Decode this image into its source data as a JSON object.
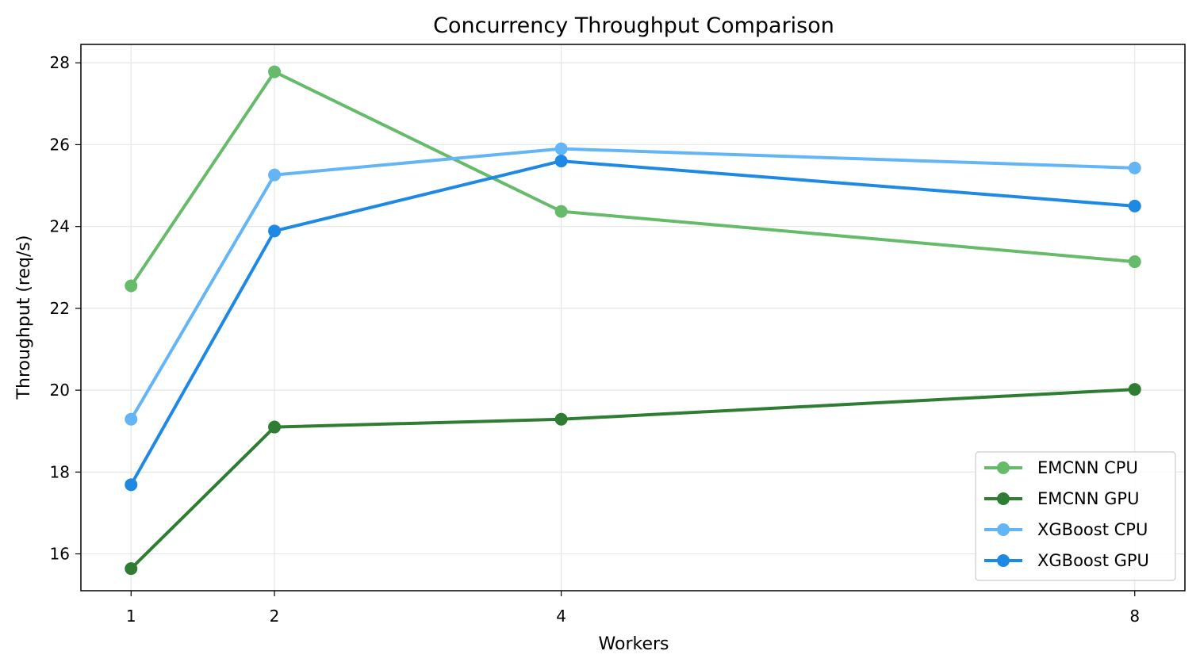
{
  "chart_data": {
    "type": "line",
    "title": "Concurrency Throughput Comparison",
    "xlabel": "Workers",
    "ylabel": "Throughput (req/s)",
    "x": [
      1,
      2,
      4,
      8
    ],
    "x_ticks": [
      "1",
      "2",
      "4",
      "8"
    ],
    "y_ticks": [
      "16",
      "18",
      "20",
      "22",
      "24",
      "26",
      "28"
    ],
    "xlim": [
      0.65,
      8.35
    ],
    "ylim": [
      15.1,
      28.45
    ],
    "grid": true,
    "legend_position": "lower-right",
    "series": [
      {
        "name": "EMCNN CPU",
        "color": "#66bb6a",
        "values": [
          22.55,
          27.78,
          24.37,
          23.14
        ]
      },
      {
        "name": "EMCNN GPU",
        "color": "#2e7d32",
        "values": [
          15.64,
          19.1,
          19.29,
          20.02
        ]
      },
      {
        "name": "XGBoost CPU",
        "color": "#64b5f6",
        "values": [
          19.29,
          25.26,
          25.9,
          25.43
        ]
      },
      {
        "name": "XGBoost GPU",
        "color": "#1e88e5",
        "values": [
          17.69,
          23.89,
          25.6,
          24.5
        ]
      }
    ]
  }
}
